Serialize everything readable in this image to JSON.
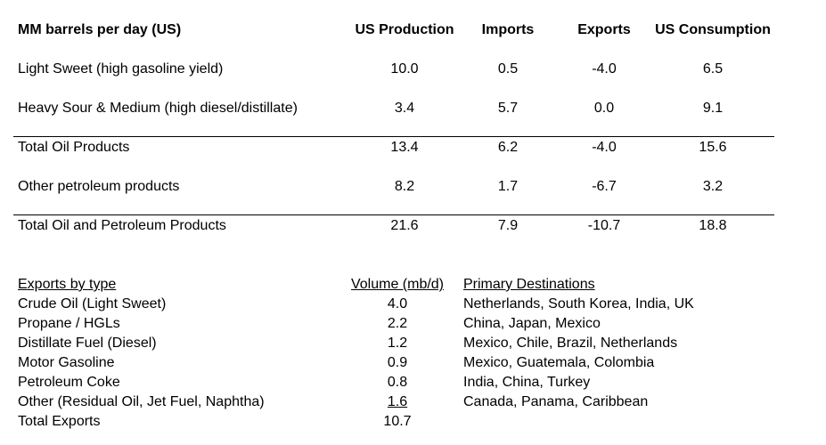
{
  "top_table": {
    "headers": {
      "label": "MM barrels per day (US)",
      "production": "US Production",
      "imports": "Imports",
      "exports": "Exports",
      "consumption": "US Consumption"
    },
    "rows": [
      {
        "label": "Light Sweet (high gasoline yield)",
        "production": "10.0",
        "imports": "0.5",
        "exports": "-4.0",
        "consumption": "6.5"
      },
      {
        "label": "Heavy Sour & Medium (high diesel/distillate)",
        "production": "3.4",
        "imports": "5.7",
        "exports": "0.0",
        "consumption": "9.1"
      },
      {
        "label": "Total Oil Products",
        "production": "13.4",
        "imports": "6.2",
        "exports": "-4.0",
        "consumption": "15.6"
      },
      {
        "label": "Other petroleum products",
        "production": "8.2",
        "imports": "1.7",
        "exports": "-6.7",
        "consumption": "3.2"
      },
      {
        "label": "Total Oil and Petroleum Products",
        "production": "21.6",
        "imports": "7.9",
        "exports": "-10.7",
        "consumption": "18.8"
      }
    ]
  },
  "exports_table": {
    "headers": {
      "type": "Exports by type",
      "volume": "Volume (mb/d)",
      "destinations": "Primary Destinations"
    },
    "rows": [
      {
        "type": "Crude Oil (Light Sweet)",
        "volume": "4.0",
        "destinations": "Netherlands, South Korea, India, UK"
      },
      {
        "type": "Propane / HGLs",
        "volume": "2.2",
        "destinations": "China, Japan, Mexico"
      },
      {
        "type": "Distillate Fuel (Diesel)",
        "volume": "1.2",
        "destinations": "Mexico, Chile, Brazil, Netherlands"
      },
      {
        "type": "Motor Gasoline",
        "volume": "0.9",
        "destinations": "Mexico, Guatemala, Colombia"
      },
      {
        "type": "Petroleum Coke",
        "volume": "0.8",
        "destinations": "India, China, Turkey"
      },
      {
        "type": "Other (Residual Oil, Jet Fuel, Naphtha)",
        "volume": "1.6",
        "destinations": "Canada, Panama, Caribbean"
      }
    ],
    "total": {
      "label": "Total Exports",
      "volume": "10.7"
    }
  }
}
